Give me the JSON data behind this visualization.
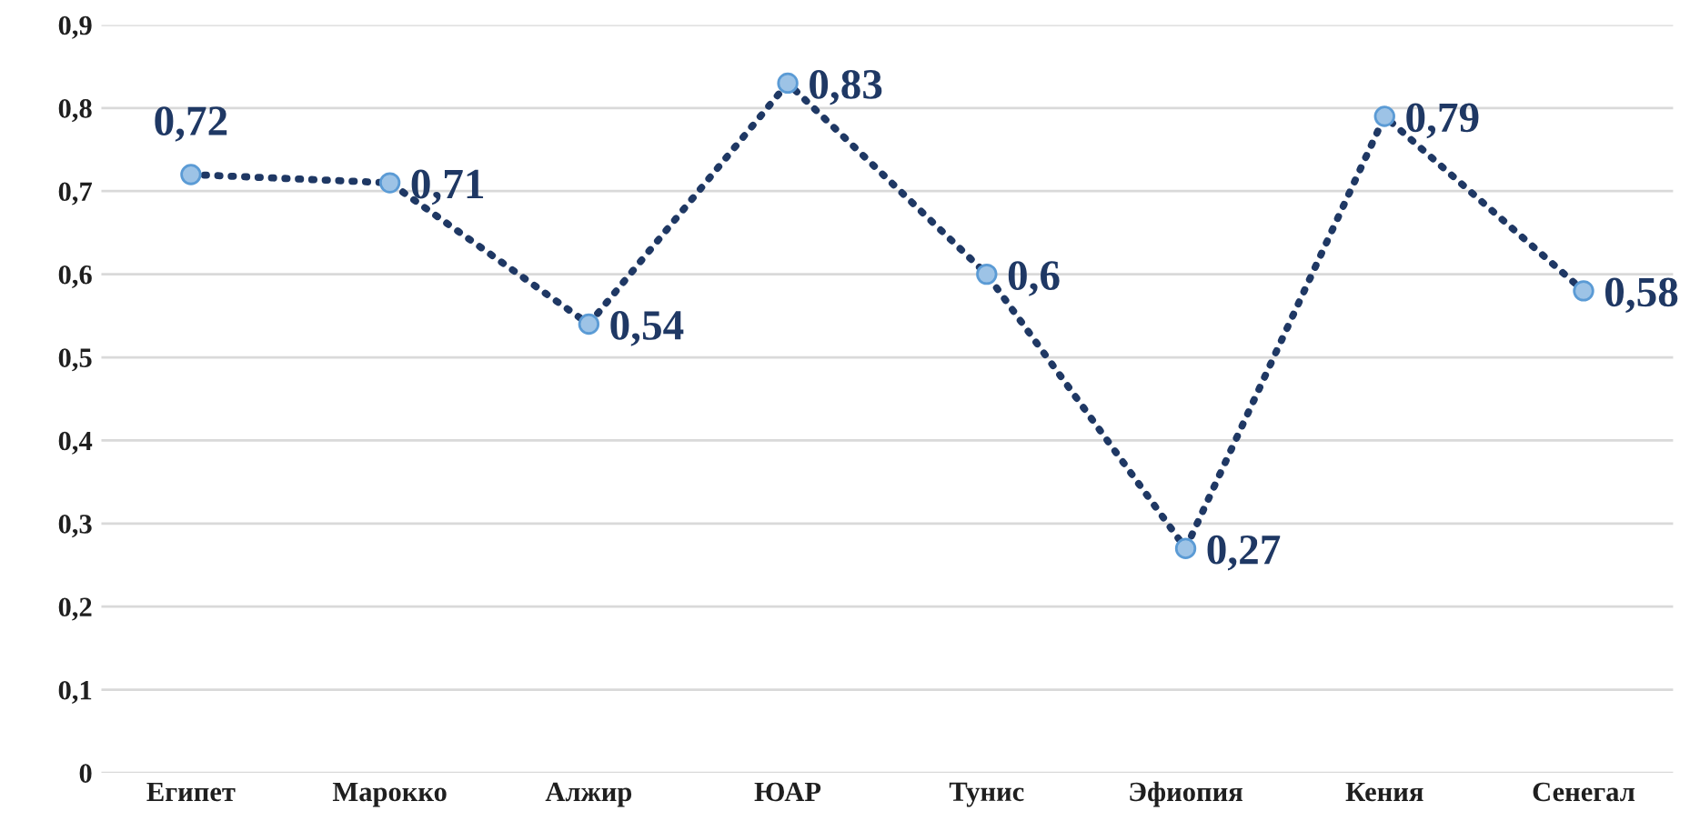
{
  "chart_data": {
    "type": "line",
    "categories": [
      "Египет",
      "Марокко",
      "Алжир",
      "ЮАР",
      "Тунис",
      "Эфиопия",
      "Кения",
      "Сенегал"
    ],
    "series": [
      {
        "color": "#1f3864",
        "colors": [
          "#9dc3e6",
          "#9dc3e6",
          "#9dc3e6",
          "#9dc3e6",
          "#9dc3e6",
          "#9dc3e6",
          "#9dc3e6",
          "#9dc3e6"
        ],
        "values": [
          0.72,
          0.71,
          0.54,
          0.83,
          0.6,
          0.27,
          0.79,
          0.58
        ],
        "value_labels": [
          "0,72",
          "0,71",
          "0,54",
          "0,83",
          "0,6",
          "0,27",
          "0,79",
          "0,58"
        ]
      }
    ],
    "ylim": [
      0,
      0.9
    ],
    "yticks": [
      0,
      {
        "value": 0.1,
        "label": "0,1"
      },
      {
        "value": 0.2,
        "label": "0,2"
      },
      {
        "value": 0.3,
        "label": "0,3"
      },
      {
        "value": 0.4,
        "label": "0,4"
      },
      {
        "value": 0.5,
        "label": "0,5"
      },
      {
        "value": 0.6,
        "label": "0,6"
      },
      {
        "value": 0.7,
        "label": "0,7"
      },
      {
        "value": 0.8,
        "label": "0,8"
      },
      {
        "value": 0.9,
        "label": "0,9"
      }
    ],
    "grid": "y",
    "marker": "circle",
    "line_style": "dotted",
    "legend": false
  }
}
